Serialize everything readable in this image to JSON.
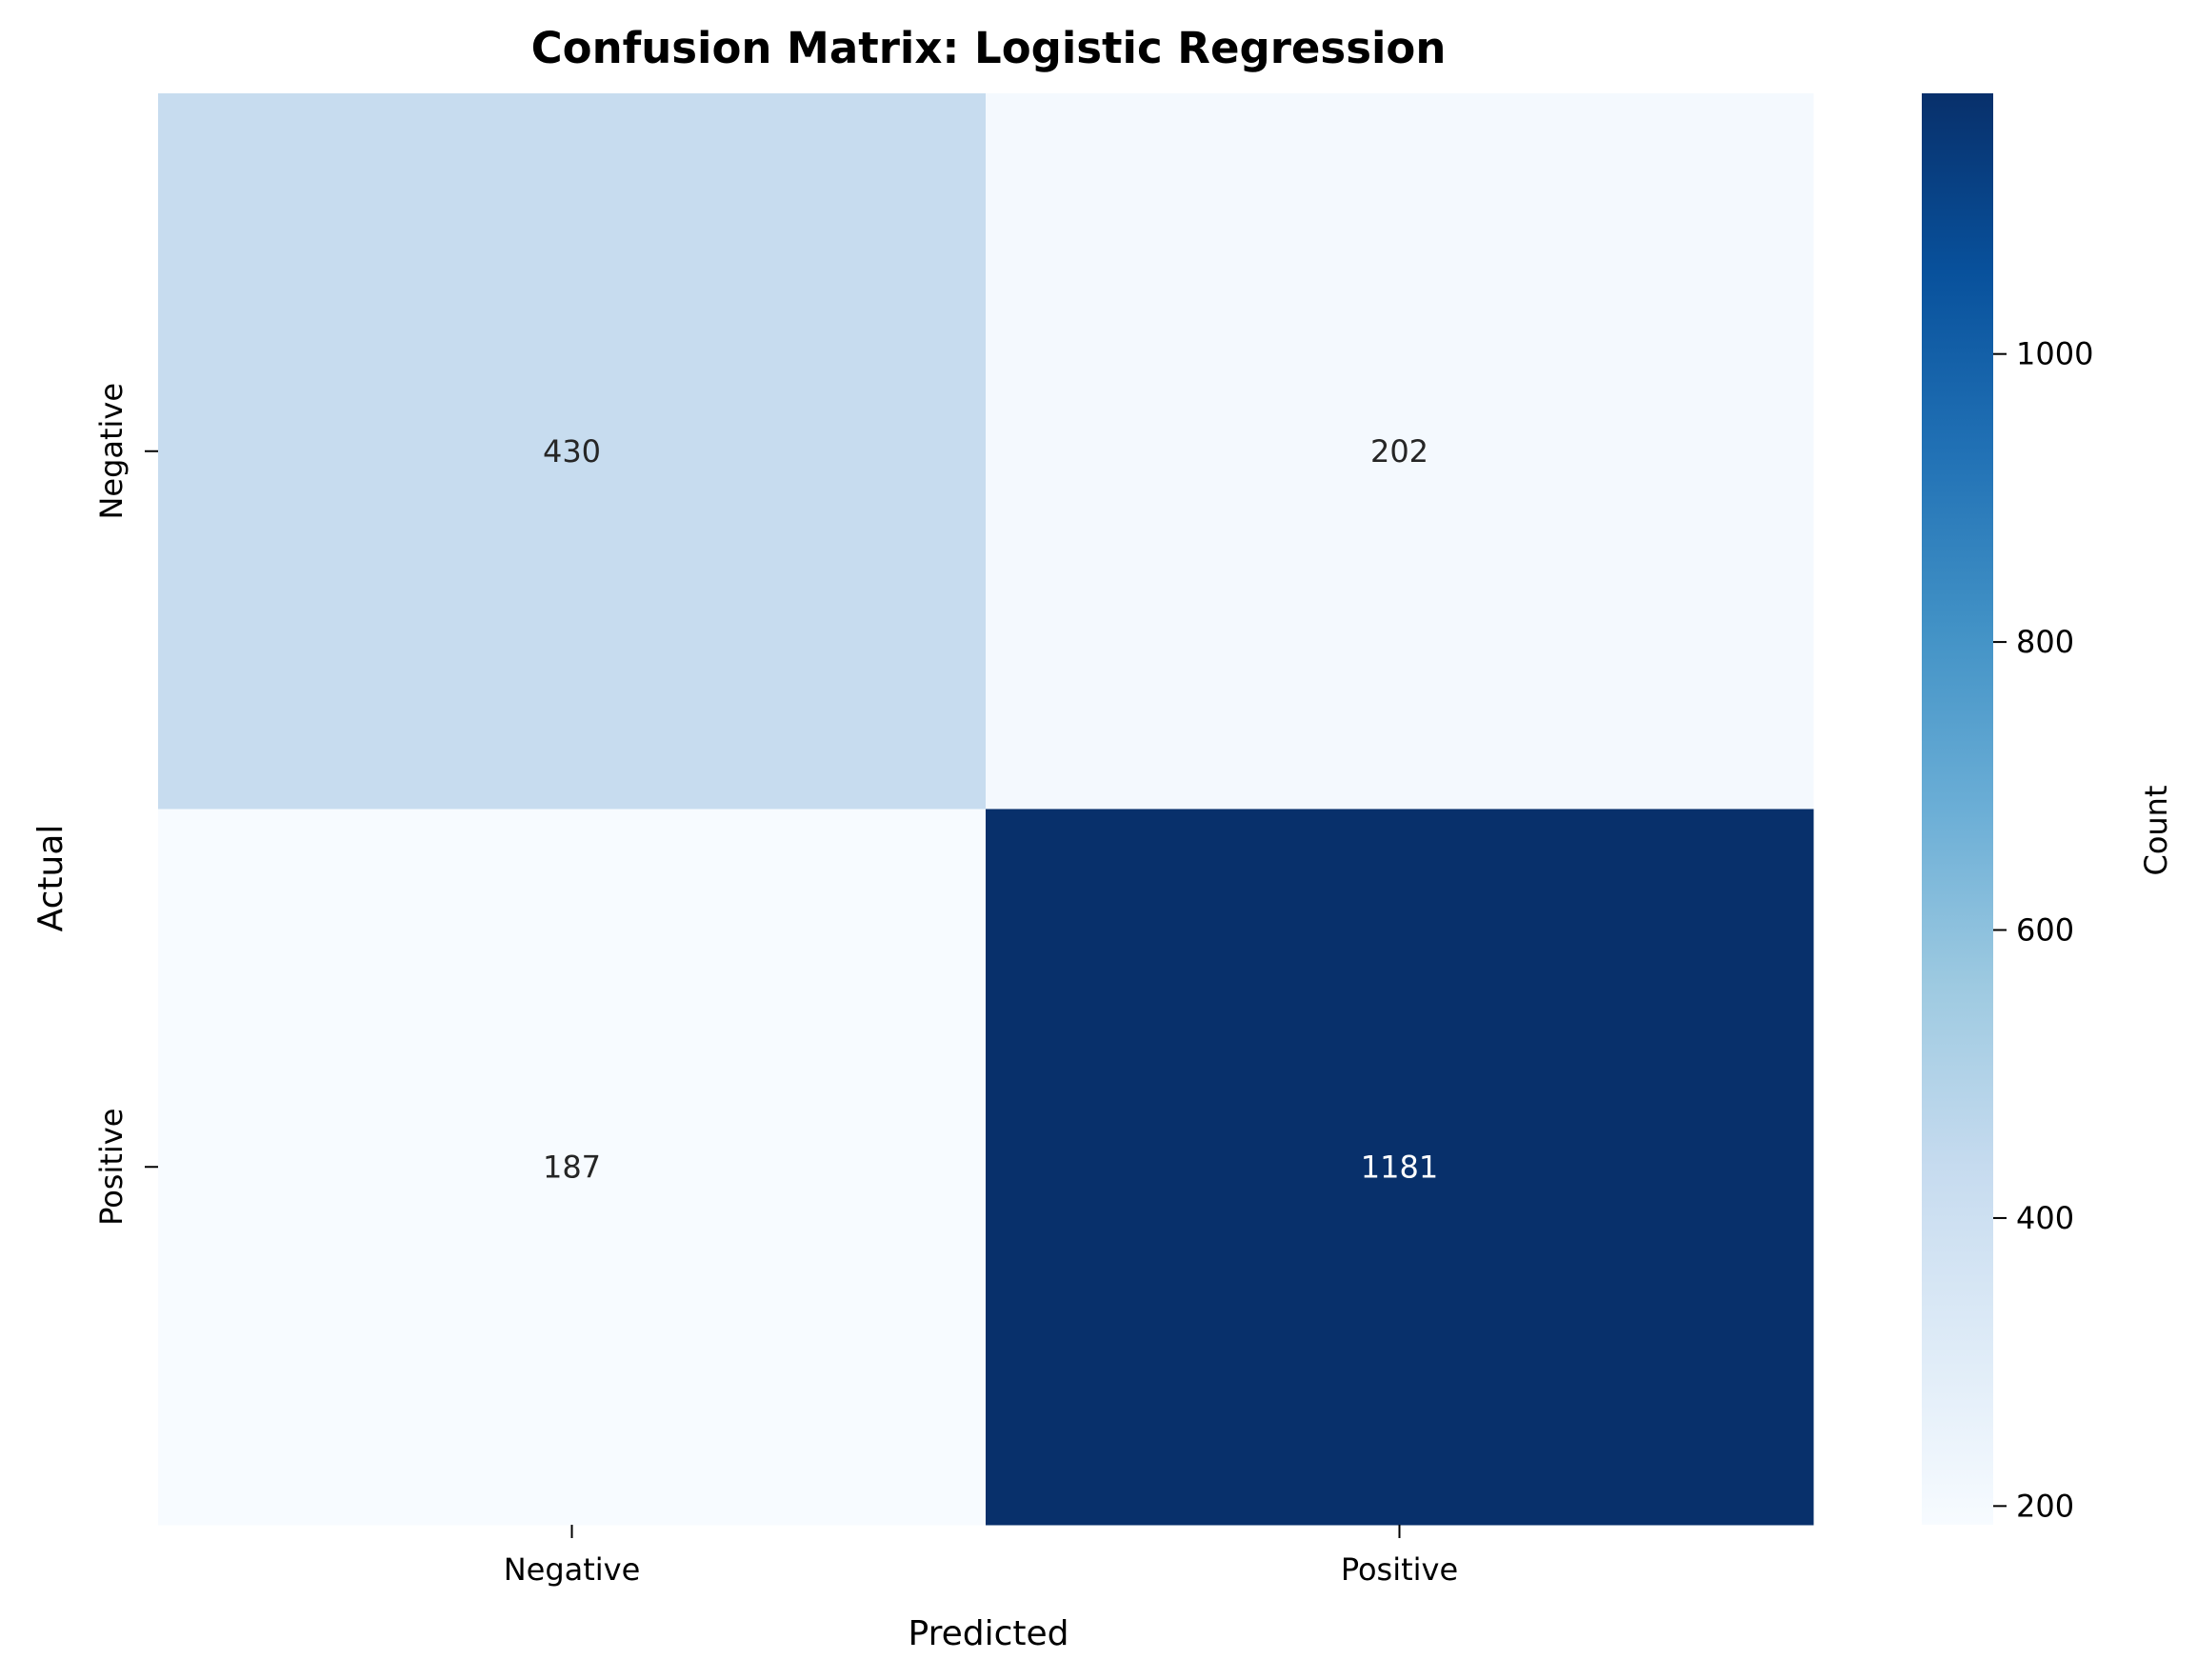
{
  "chart_data": {
    "type": "heatmap",
    "title": "Confusion Matrix: Logistic Regression",
    "xlabel": "Predicted",
    "ylabel": "Actual",
    "x_categories": [
      "Negative",
      "Positive"
    ],
    "y_categories": [
      "Negative",
      "Positive"
    ],
    "values": [
      [
        430,
        202
      ],
      [
        187,
        1181
      ]
    ],
    "colorbar": {
      "label": "Count",
      "min": 187,
      "max": 1181,
      "ticks": [
        200,
        400,
        600,
        800,
        1000
      ],
      "colormap": "Blues",
      "colors": [
        "#f7fbff",
        "#deebf7",
        "#c6dbef",
        "#9ecae1",
        "#6baed6",
        "#4292c6",
        "#2171b5",
        "#08519c",
        "#08306b"
      ]
    },
    "annotation_dark": "#262626",
    "annotation_light": "#ffffff"
  }
}
